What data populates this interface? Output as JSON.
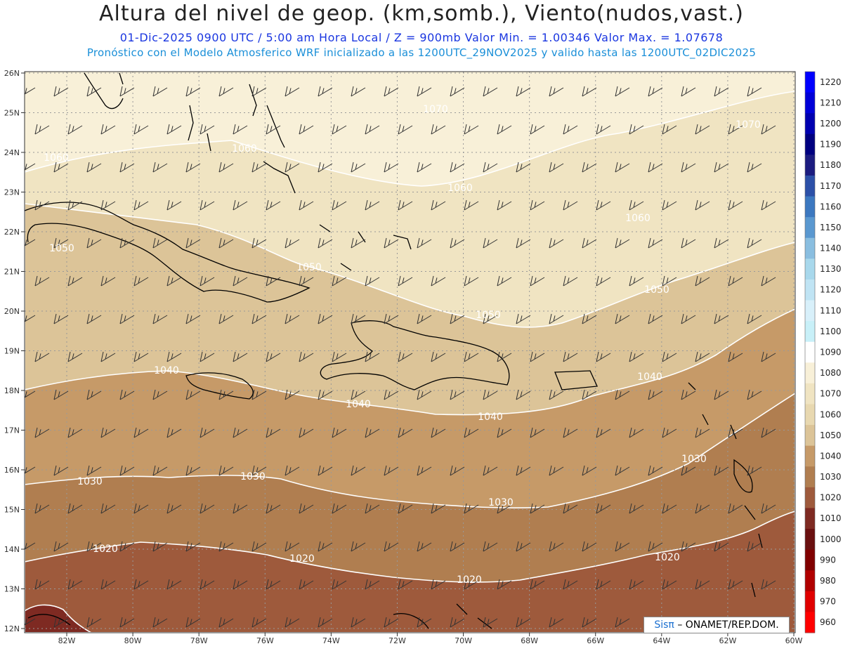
{
  "header": {
    "title": "Altura del nivel de geop. (km,somb.), Viento(nudos,vast.)",
    "subtitle_line1": "01-Dic-2025   0900 UTC / 5:00 am Hora Local / Z = 900mb     Valor Min. = 1.00346  Valor Max. = 1.07678",
    "subtitle_line2": "Pronóstico con el Modelo Atmosferico WRF inicializado a las 1200UTC_29NOV2025 y valido hasta las  1200UTC_02DIC2025"
  },
  "map": {
    "lat_labels": [
      "26N",
      "25N",
      "24N",
      "23N",
      "22N",
      "21N",
      "20N",
      "19N",
      "18N",
      "17N",
      "16N",
      "15N",
      "14N",
      "13N",
      "12N"
    ],
    "lon_labels": [
      "82W",
      "80W",
      "78W",
      "76W",
      "74W",
      "72W",
      "70W",
      "68W",
      "66W",
      "64W",
      "62W",
      "60W"
    ],
    "contour_labels": [
      "1070",
      "1070",
      "1060",
      "1060",
      "1060",
      "1060",
      "1050",
      "1050",
      "1050",
      "1050",
      "1040",
      "1040",
      "1040",
      "1040",
      "1030",
      "1030",
      "1030",
      "1030",
      "1020",
      "1020",
      "1020",
      "1020"
    ],
    "band_colors": [
      "#f8f0d8",
      "#f0e4c2",
      "#dcc498",
      "#c69a68",
      "#b07e50",
      "#9e5a3c",
      "#7e2a22"
    ],
    "land_line_color": "#000000",
    "contour_line_color": "#ffffff",
    "wind_barb_color": "#333333"
  },
  "colorbar": {
    "labels": [
      "1220",
      "1210",
      "1200",
      "1190",
      "1180",
      "1170",
      "1160",
      "1150",
      "1140",
      "1130",
      "1120",
      "1110",
      "1100",
      "1090",
      "1080",
      "1070",
      "1060",
      "1050",
      "1040",
      "1030",
      "1020",
      "1010",
      "1000",
      "990",
      "980",
      "970",
      "960"
    ],
    "colors": [
      "#0000ff",
      "#0000d8",
      "#0000b0",
      "#000080",
      "#1c1c80",
      "#2c50a8",
      "#3c78c0",
      "#5a98d0",
      "#8abee0",
      "#a8d8ec",
      "#c0e4f4",
      "#d8f0fa",
      "#c8f0f8",
      "#ffffff",
      "#f8f0d8",
      "#f0e4c2",
      "#e8d8b0",
      "#dcc498",
      "#c69a68",
      "#b07e50",
      "#9e5a3c",
      "#7e2a22",
      "#6a1010",
      "#800000",
      "#b00000",
      "#e00000",
      "#ff0000"
    ]
  },
  "credit": {
    "brand": "Sisπ",
    "org": "– ONAMET/REP.DOM."
  }
}
